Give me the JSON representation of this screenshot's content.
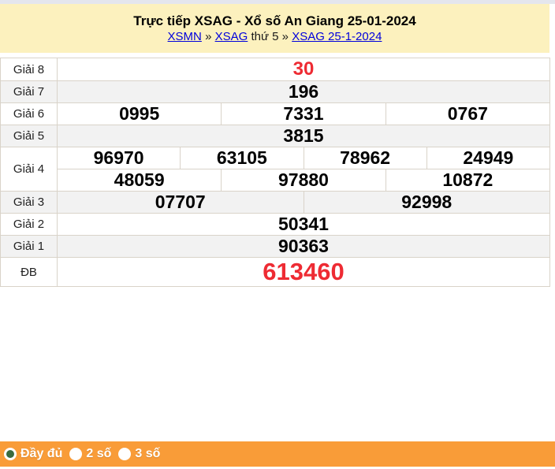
{
  "header": {
    "title": "Trực tiếp XSAG - Xổ số An Giang 25-01-2024",
    "breadcrumb": [
      {
        "text": "XSMN",
        "link": true
      },
      {
        "text": "»",
        "link": false
      },
      {
        "text": "XSAG",
        "link": true
      },
      {
        "text": "thứ 5",
        "link": false
      },
      {
        "text": "»",
        "link": false
      },
      {
        "text": "XSAG 25-1-2024",
        "link": true
      }
    ]
  },
  "table": {
    "rows": [
      {
        "label": "Giải 8",
        "lines": [
          [
            "30"
          ]
        ],
        "highlight": true,
        "size": "medium",
        "shade": false
      },
      {
        "label": "Giải 7",
        "lines": [
          [
            "196"
          ]
        ],
        "highlight": false,
        "shade": true
      },
      {
        "label": "Giải 6",
        "lines": [
          [
            "0995",
            "7331",
            "0767"
          ]
        ],
        "highlight": false,
        "shade": false
      },
      {
        "label": "Giải 5",
        "lines": [
          [
            "3815"
          ]
        ],
        "highlight": false,
        "shade": true
      },
      {
        "label": "Giải 4",
        "lines": [
          [
            "96970",
            "63105",
            "78962",
            "24949"
          ],
          [
            "48059",
            "97880",
            "10872"
          ]
        ],
        "highlight": false,
        "shade": false
      },
      {
        "label": "Giải 3",
        "lines": [
          [
            "07707",
            "92998"
          ]
        ],
        "highlight": false,
        "shade": true
      },
      {
        "label": "Giải 2",
        "lines": [
          [
            "50341"
          ]
        ],
        "highlight": false,
        "shade": false
      },
      {
        "label": "Giải 1",
        "lines": [
          [
            "90363"
          ]
        ],
        "highlight": false,
        "shade": true
      },
      {
        "label": "ĐB",
        "lines": [
          [
            "613460"
          ]
        ],
        "highlight": true,
        "size": "large",
        "shade": false
      }
    ]
  },
  "footer": {
    "options": [
      {
        "label": "Đầy đủ",
        "selected": true
      },
      {
        "label": "2 số",
        "selected": false
      },
      {
        "label": "3 số",
        "selected": false
      }
    ]
  },
  "colors": {
    "header_background": "#fcf1be",
    "top_strip": "#e4e6ed",
    "table_border": "#d9d3c9",
    "shaded_row": "#f2f2f2",
    "highlight_red": "#ee2b33",
    "footer_orange": "#f99c38",
    "radio_selected_green": "#3a6b3f",
    "link_blue": "#0000dd"
  }
}
